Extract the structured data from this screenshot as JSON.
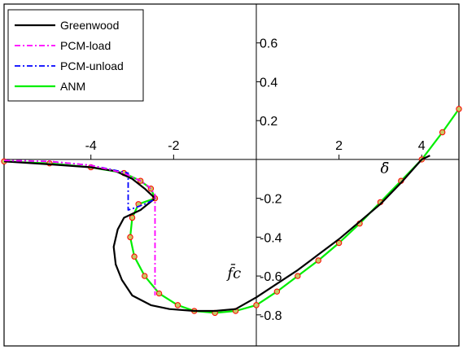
{
  "chart_data": {
    "type": "line",
    "title": "",
    "xlim": [
      -6.1,
      4.9
    ],
    "ylim": [
      -0.96,
      0.8
    ],
    "x_ticks": [
      -4,
      -2,
      2,
      4
    ],
    "x_tick_labels": [
      "-4",
      "-2",
      "2",
      "4"
    ],
    "y_ticks": [
      0.6,
      0.4,
      0.2,
      -0.2,
      -0.4,
      -0.6,
      -0.8
    ],
    "y_tick_labels": [
      "0.6",
      "0.4",
      "0.2",
      "-0.2",
      "-0.4",
      "-0.6",
      "-0.8"
    ],
    "x_axis_symbol": "δ̄",
    "y_axis_symbol": "f̄c",
    "grid": false,
    "legend_position": "top-left",
    "colors": {
      "greenwood": "#000000",
      "pcm_load": "#ff00ff",
      "pcm_unload": "#0000ff",
      "anm_line": "#00ee00",
      "anm_marker_edge": "#ff0000",
      "anm_marker_fill": "#c8c864"
    },
    "series": [
      {
        "name": "Greenwood",
        "style": "solid",
        "points": [
          [
            -6.1,
            -0.01
          ],
          [
            -5,
            -0.025
          ],
          [
            -4,
            -0.04
          ],
          [
            -3.4,
            -0.06
          ],
          [
            -3.0,
            -0.1
          ],
          [
            -2.7,
            -0.15
          ],
          [
            -2.45,
            -0.2
          ],
          [
            -2.8,
            -0.26
          ],
          [
            -3.2,
            -0.3
          ],
          [
            -3.35,
            -0.36
          ],
          [
            -3.45,
            -0.45
          ],
          [
            -3.4,
            -0.54
          ],
          [
            -3.25,
            -0.62
          ],
          [
            -3.0,
            -0.7
          ],
          [
            -2.55,
            -0.75
          ],
          [
            -2.1,
            -0.77
          ],
          [
            -1.5,
            -0.78
          ],
          [
            -1.0,
            -0.78
          ],
          [
            -0.5,
            -0.77
          ],
          [
            0.0,
            -0.71
          ],
          [
            0.5,
            -0.64
          ],
          [
            1.0,
            -0.57
          ],
          [
            1.5,
            -0.49
          ],
          [
            2.0,
            -0.41
          ],
          [
            2.5,
            -0.32
          ],
          [
            3.0,
            -0.23
          ],
          [
            3.5,
            -0.12
          ],
          [
            4.0,
            0.0
          ],
          [
            4.2,
            0.02
          ]
        ]
      },
      {
        "name": "PCM-load",
        "style": "dashdot",
        "points": [
          [
            -6.1,
            -0.005
          ],
          [
            -5,
            -0.01
          ],
          [
            -4,
            -0.03
          ],
          [
            -3.2,
            -0.07
          ],
          [
            -2.8,
            -0.11
          ],
          [
            -2.6,
            -0.14
          ],
          [
            -2.45,
            -0.18
          ],
          [
            -2.45,
            -0.3
          ],
          [
            -2.45,
            -0.45
          ],
          [
            -2.45,
            -0.6
          ],
          [
            -2.45,
            -0.7
          ]
        ]
      },
      {
        "name": "PCM-unload",
        "style": "dashdot",
        "points": [
          [
            -6.1,
            -0.005
          ],
          [
            -5,
            -0.01
          ],
          [
            -4,
            -0.03
          ],
          [
            -3.1,
            -0.07
          ],
          [
            -3.1,
            -0.15
          ],
          [
            -3.1,
            -0.26
          ],
          [
            -2.95,
            -0.25
          ],
          [
            -2.7,
            -0.23
          ],
          [
            -2.5,
            -0.21
          ]
        ]
      },
      {
        "name": "ANM",
        "style": "solid-markers",
        "points": [
          [
            -6.1,
            -0.01
          ],
          [
            -5,
            -0.02
          ],
          [
            -4,
            -0.04
          ],
          [
            -3.2,
            -0.07
          ],
          [
            -2.8,
            -0.11
          ],
          [
            -2.55,
            -0.15
          ],
          [
            -2.45,
            -0.2
          ],
          [
            -2.85,
            -0.23
          ],
          [
            -3.0,
            -0.3
          ],
          [
            -3.05,
            -0.4
          ],
          [
            -2.95,
            -0.5
          ],
          [
            -2.7,
            -0.6
          ],
          [
            -2.35,
            -0.69
          ],
          [
            -1.9,
            -0.75
          ],
          [
            -1.5,
            -0.78
          ],
          [
            -1.0,
            -0.79
          ],
          [
            -0.5,
            -0.78
          ],
          [
            0.0,
            -0.75
          ],
          [
            0.5,
            -0.68
          ],
          [
            1.0,
            -0.6
          ],
          [
            1.5,
            -0.52
          ],
          [
            2.0,
            -0.43
          ],
          [
            2.5,
            -0.33
          ],
          [
            3.0,
            -0.22
          ],
          [
            3.5,
            -0.11
          ],
          [
            4.0,
            0.0
          ],
          [
            4.5,
            0.14
          ],
          [
            4.9,
            0.26
          ]
        ]
      }
    ]
  }
}
